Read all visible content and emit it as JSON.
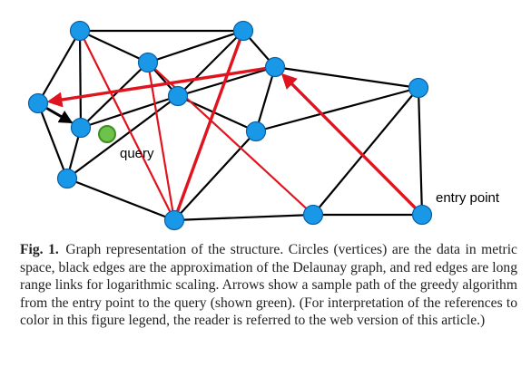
{
  "diagram": {
    "nodes": [
      {
        "id": "n1"
      },
      {
        "id": "n2"
      },
      {
        "id": "n3"
      },
      {
        "id": "n4"
      },
      {
        "id": "n5"
      },
      {
        "id": "n6"
      },
      {
        "id": "n7"
      },
      {
        "id": "n8"
      },
      {
        "id": "n9"
      },
      {
        "id": "n10"
      },
      {
        "id": "n11"
      },
      {
        "id": "n12"
      },
      {
        "id": "n13"
      },
      {
        "id": "n14"
      }
    ],
    "query_label": "query",
    "entry_label": "entry point",
    "colors": {
      "vertex": "#1a98e8",
      "query": "#6cc24a",
      "delaunay_edge": "#000000",
      "long_range_link": "#e0141e"
    }
  },
  "caption": {
    "label": "Fig. 1.",
    "text": "Graph representation of the structure. Circles (vertices) are the data in metric space, black edges are the approximation of the Delaunay graph, and red edges are long range links for logarithmic scaling. Arrows show a sample path of the greedy algorithm from the entry point to the query (shown green). (For interpretation of the references to color in this figure legend, the reader is referred to the web version of this article.)"
  }
}
